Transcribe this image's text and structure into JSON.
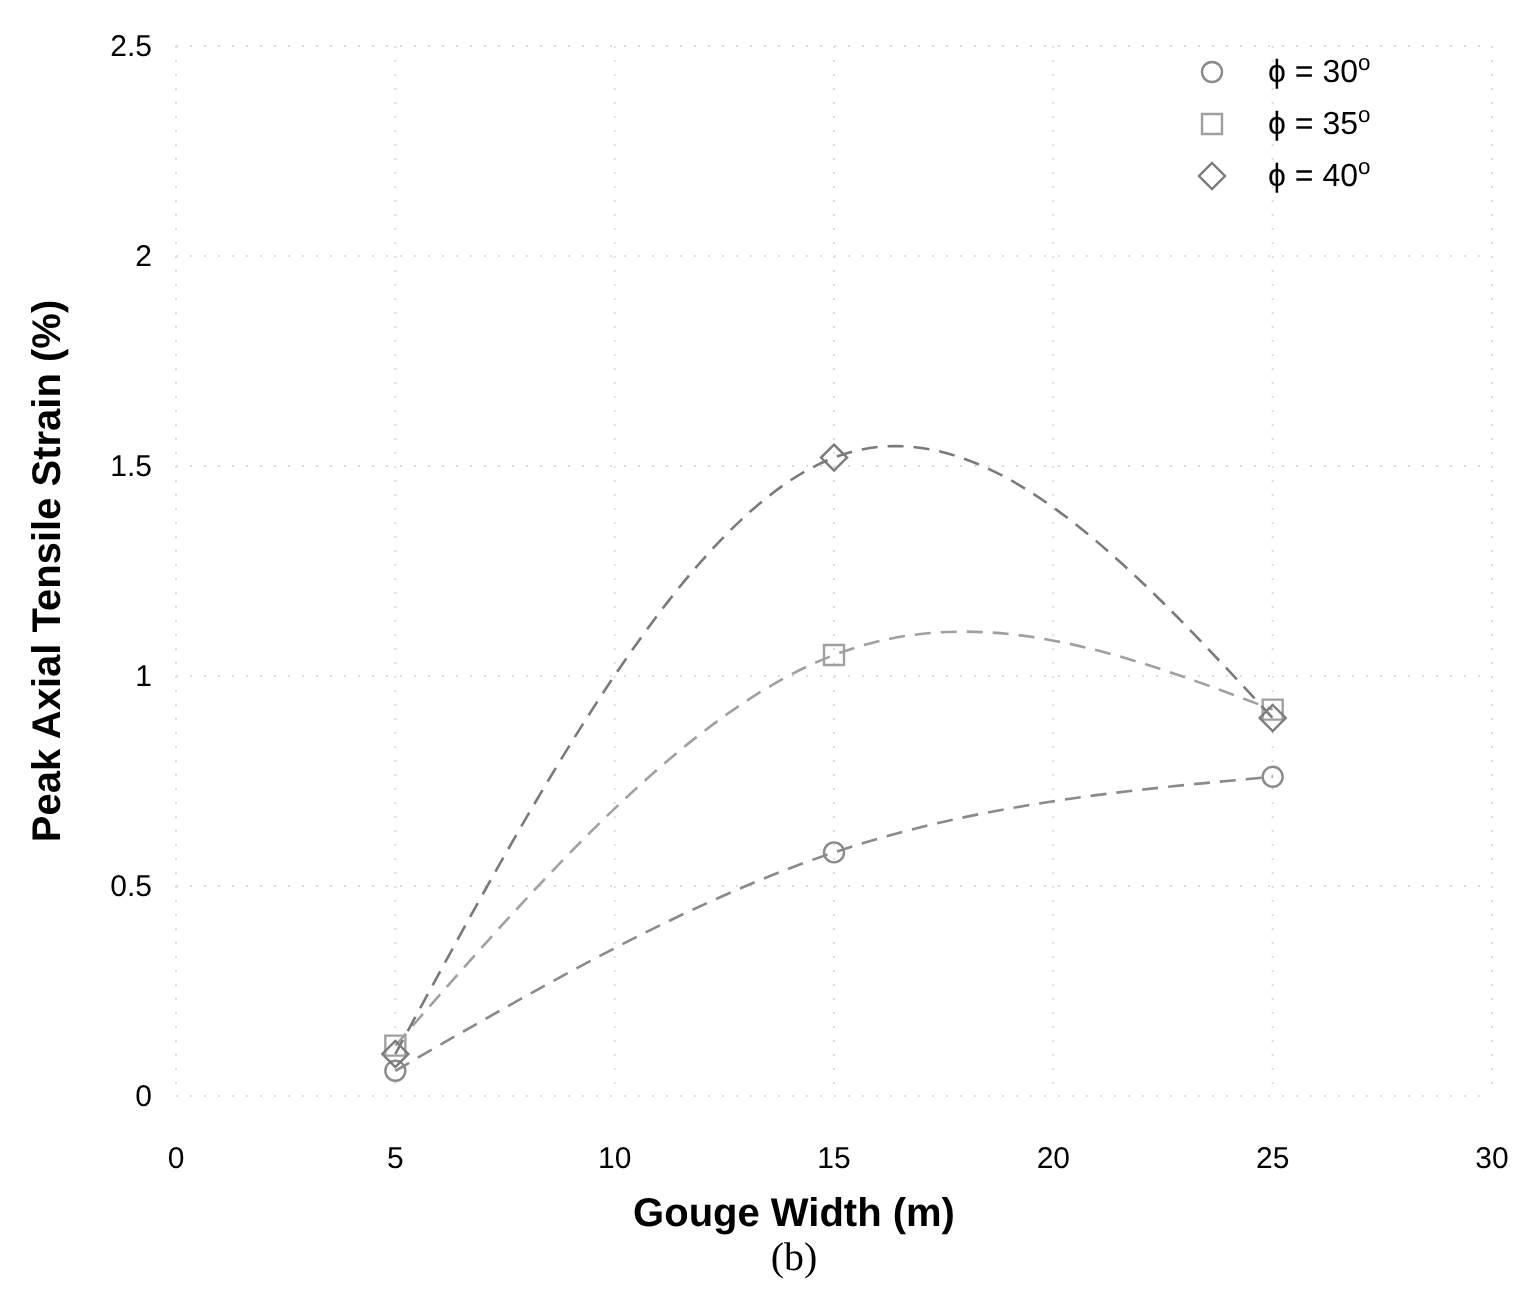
{
  "chart_data": {
    "type": "line",
    "xlabel": "Gouge Width (m)",
    "ylabel": "Peak Axial Tensile Strain (%)",
    "x": [
      5,
      15,
      25
    ],
    "series": [
      {
        "name": "ϕ = 30$^{o}$",
        "color": "#8a8a8a",
        "values": [
          0.06,
          0.58,
          0.76
        ],
        "marker": "circle"
      },
      {
        "name": "ϕ = 35$^{o}$",
        "color": "#a0a0a0",
        "values": [
          0.12,
          1.05,
          0.92
        ],
        "marker": "square"
      },
      {
        "name": "ϕ = 40$^{o}$",
        "color": "#7a7a7a",
        "values": [
          0.1,
          1.52,
          0.9
        ],
        "marker": "diamond"
      }
    ],
    "xlim": [
      0,
      30
    ],
    "xticks": [
      0,
      5,
      10,
      15,
      20,
      25,
      30
    ],
    "ylim": [
      0,
      2.5
    ],
    "yticks": [
      0,
      0.5,
      1,
      1.5,
      2,
      2.5
    ],
    "grid": true,
    "legend": "top right",
    "line_style": "dashed",
    "annotations": [
      "(b)"
    ]
  }
}
